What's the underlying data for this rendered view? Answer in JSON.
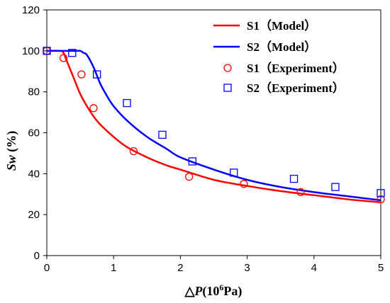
{
  "chart_data": {
    "type": "line",
    "title": "",
    "xlabel": {
      "prefix": "△",
      "italic": "P",
      "unit_base": "(10",
      "unit_exp": "6",
      "unit_tail": "Pa)"
    },
    "ylabel": {
      "italic": "Sw",
      "unit": " (%)"
    },
    "xlim": [
      0,
      5
    ],
    "ylim": [
      0,
      120
    ],
    "xticks": [
      0,
      1,
      2,
      3,
      4,
      5
    ],
    "yticks": [
      0,
      20,
      40,
      60,
      80,
      100,
      120
    ],
    "grid": false,
    "legend_position": "top-right",
    "series": [
      {
        "name": "S1（Model）",
        "style": "line",
        "color": "#ff0000",
        "x": [
          0,
          0.2,
          0.25,
          0.3,
          0.4,
          0.5,
          0.6,
          0.7,
          0.8,
          1.0,
          1.2,
          1.5,
          1.8,
          2.0,
          2.5,
          3.0,
          3.5,
          4.0,
          4.5,
          5.0
        ],
        "y": [
          100,
          100,
          99,
          95,
          87,
          79,
          73,
          68,
          64,
          58,
          53,
          48,
          44,
          42,
          37,
          34,
          31.5,
          29.5,
          27.5,
          26
        ]
      },
      {
        "name": "S2（Model）",
        "style": "line",
        "color": "#0000ff",
        "x": [
          0,
          0.2,
          0.4,
          0.5,
          0.55,
          0.6,
          0.7,
          0.8,
          0.9,
          1.0,
          1.2,
          1.5,
          1.8,
          2.0,
          2.5,
          3.0,
          3.5,
          4.0,
          4.5,
          5.0
        ],
        "y": [
          100,
          100,
          100,
          100,
          99,
          98,
          92,
          84,
          78,
          73,
          66,
          58,
          52,
          48,
          42,
          37,
          33.5,
          31,
          29,
          27
        ]
      },
      {
        "name": "S1（Experiment）",
        "style": "circle",
        "color": "#ff0000",
        "x": [
          0,
          0.25,
          0.52,
          0.7,
          1.3,
          2.13,
          2.95,
          3.8,
          5.0
        ],
        "y": [
          100,
          96.5,
          88.5,
          72,
          51,
          38.5,
          35,
          31,
          27.5
        ]
      },
      {
        "name": "S2（Experiment）",
        "style": "square",
        "color": "#0000ff",
        "x": [
          0,
          0.38,
          0.75,
          1.2,
          1.73,
          2.18,
          2.8,
          3.7,
          4.32,
          5.0
        ],
        "y": [
          100,
          99,
          88.5,
          74.5,
          59,
          46,
          40.5,
          37.5,
          33.5,
          30.5
        ]
      }
    ]
  }
}
